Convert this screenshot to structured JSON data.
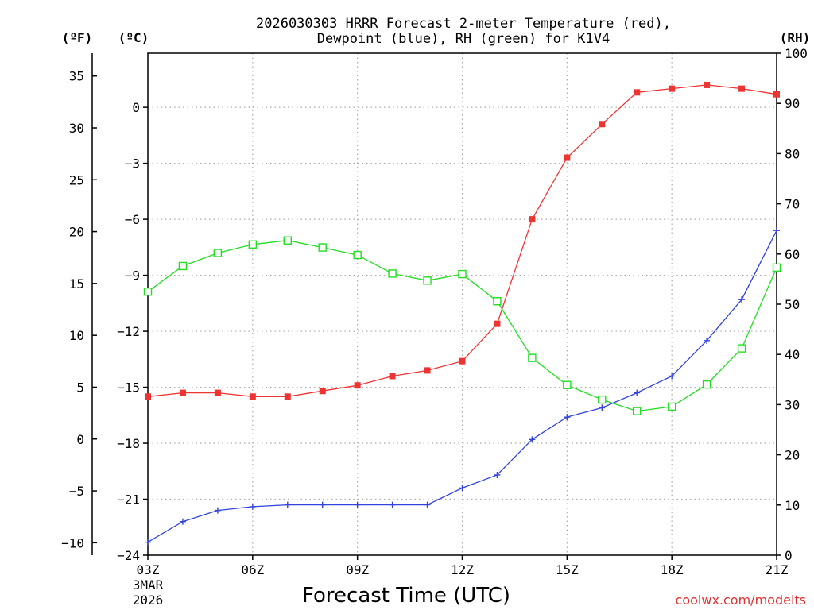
{
  "chart_data": {
    "type": "line",
    "title_line1": "2026030303 HRRR Forecast 2-meter Temperature (red),",
    "title_line2": "Dewpoint (blue), RH (green) for K1V4",
    "xlabel": "Forecast Time (UTC)",
    "unit_labels": {
      "fahrenheit": "(ºF)",
      "celsius": "(ºC)",
      "rh": "(RH)"
    },
    "x_hours": [
      0,
      1,
      2,
      3,
      4,
      5,
      6,
      7,
      8,
      9,
      10,
      11,
      12,
      13,
      14,
      15,
      16,
      17,
      18
    ],
    "x_tick_labels": [
      "03Z",
      "06Z",
      "09Z",
      "12Z",
      "15Z",
      "18Z",
      "21Z"
    ],
    "x_tick_hours": [
      0,
      3,
      6,
      9,
      12,
      15,
      18
    ],
    "date_label_line1": "3MAR",
    "date_label_line2": "2026",
    "celsius_axis": {
      "range": [
        -24,
        2.9
      ],
      "ticks": [
        0,
        -3,
        -6,
        -9,
        -12,
        -15,
        -18,
        -21,
        -24
      ],
      "labels": [
        "0",
        "−3",
        "−6",
        "−9",
        "−12",
        "−15",
        "−18",
        "−21",
        "−24"
      ]
    },
    "fahrenheit_axis": {
      "range": [
        -11.2,
        37.2
      ],
      "ticks": [
        35,
        30,
        25,
        20,
        15,
        10,
        5,
        0,
        -5,
        -10
      ],
      "labels": [
        "35",
        "30",
        "25",
        "20",
        "15",
        "10",
        "5",
        "0",
        "−5",
        "−10"
      ]
    },
    "rh_axis": {
      "range": [
        0,
        100
      ],
      "ticks": [
        100,
        90,
        80,
        70,
        60,
        50,
        40,
        30,
        20,
        10,
        0
      ],
      "labels": [
        "100",
        "90",
        "80",
        "70",
        "60",
        "50",
        "40",
        "30",
        "20",
        "10",
        "0"
      ]
    },
    "series": [
      {
        "name": "Temperature",
        "color": "#ee3333",
        "axis": "celsius",
        "marker": "filled-square",
        "values": [
          -15.5,
          -15.3,
          -15.3,
          -15.5,
          -15.5,
          -15.2,
          -14.9,
          -14.4,
          -14.1,
          -13.6,
          -11.6,
          -6.0,
          -2.7,
          -0.9,
          0.8,
          1.0,
          1.2,
          1.0,
          0.7
        ]
      },
      {
        "name": "Dewpoint",
        "color": "#3344dd",
        "axis": "celsius",
        "marker": "plus",
        "values": [
          -23.3,
          -22.2,
          -21.6,
          -21.4,
          -21.3,
          -21.3,
          -21.3,
          -21.3,
          -21.3,
          -20.4,
          -19.7,
          -17.8,
          -16.6,
          -16.1,
          -15.3,
          -14.4,
          -12.5,
          -10.3,
          -6.6
        ]
      },
      {
        "name": "RH",
        "color": "#22dd22",
        "axis": "rh",
        "marker": "open-square",
        "values": [
          52.5,
          57.6,
          60.2,
          61.9,
          62.7,
          61.3,
          59.8,
          56.1,
          54.7,
          56.0,
          50.6,
          39.3,
          33.9,
          31.0,
          28.7,
          29.6,
          34.0,
          41.2,
          57.3
        ]
      }
    ],
    "grid": true
  },
  "watermark": "coolwx.com/modelts"
}
